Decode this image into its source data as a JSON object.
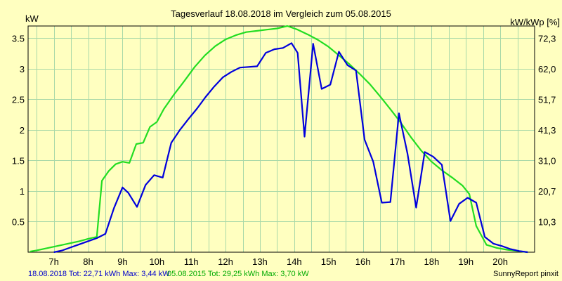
{
  "chart_data": {
    "type": "line",
    "title": "Tagesverlauf 18.08.2018 im Vergleich zum 05.08.2015",
    "ylabel_left": "kW",
    "ylabel_right": "kW/kWp [%]",
    "x_tick_labels": [
      "7h",
      "8h",
      "9h",
      "10h",
      "11h",
      "12h",
      "13h",
      "14h",
      "15h",
      "16h",
      "17h",
      "18h",
      "19h",
      "20h"
    ],
    "x_tick_values": [
      7,
      8,
      9,
      10,
      11,
      12,
      13,
      14,
      15,
      16,
      17,
      18,
      19,
      20
    ],
    "y_ticks_left": [
      {
        "value": 0.5,
        "label": "0.5"
      },
      {
        "value": 1,
        "label": "1"
      },
      {
        "value": 1.5,
        "label": "1.5"
      },
      {
        "value": 2,
        "label": "2"
      },
      {
        "value": 2.5,
        "label": "2.5"
      },
      {
        "value": 3,
        "label": "3"
      },
      {
        "value": 3.5,
        "label": "3.5"
      }
    ],
    "y_ticks_right": [
      {
        "value": 0.5,
        "label": "10,3"
      },
      {
        "value": 1,
        "label": "20,7"
      },
      {
        "value": 1.5,
        "label": "31,0"
      },
      {
        "value": 2,
        "label": "41,3"
      },
      {
        "value": 2.5,
        "label": "51,7"
      },
      {
        "value": 3,
        "label": "62,0"
      },
      {
        "value": 3.5,
        "label": "72,3"
      }
    ],
    "xlim": [
      6.25,
      21.0
    ],
    "ylim": [
      0,
      3.7
    ],
    "grid": true,
    "series": [
      {
        "name": "18.08.2018",
        "color": "#0000dd",
        "x": [
          7.0,
          7.25,
          7.5,
          7.75,
          8.0,
          8.25,
          8.5,
          8.75,
          9.0,
          9.17,
          9.42,
          9.67,
          9.92,
          10.17,
          10.42,
          10.67,
          10.92,
          11.17,
          11.42,
          11.67,
          11.92,
          12.17,
          12.42,
          12.67,
          12.92,
          13.17,
          13.42,
          13.67,
          13.92,
          14.1,
          14.3,
          14.55,
          14.8,
          15.05,
          15.3,
          15.55,
          15.8,
          16.05,
          16.3,
          16.55,
          16.8,
          17.05,
          17.3,
          17.55,
          17.8,
          18.05,
          18.3,
          18.55,
          18.8,
          19.05,
          19.3,
          19.55,
          19.8,
          20.05,
          20.3,
          20.55,
          20.8
        ],
        "values": [
          0.0,
          0.03,
          0.08,
          0.13,
          0.18,
          0.23,
          0.3,
          0.72,
          1.06,
          0.97,
          0.74,
          1.1,
          1.26,
          1.22,
          1.79,
          2.0,
          2.18,
          2.35,
          2.54,
          2.71,
          2.86,
          2.95,
          3.02,
          3.03,
          3.04,
          3.26,
          3.32,
          3.34,
          3.42,
          3.26,
          1.89,
          3.41,
          2.67,
          2.74,
          3.28,
          3.06,
          2.97,
          1.84,
          1.48,
          0.81,
          0.82,
          2.27,
          1.61,
          0.73,
          1.64,
          1.56,
          1.43,
          0.51,
          0.79,
          0.89,
          0.81,
          0.25,
          0.14,
          0.1,
          0.05,
          0.02,
          0.0
        ]
      },
      {
        "name": "05.08.2015",
        "color": "#22dd22",
        "x": [
          6.3,
          6.5,
          6.75,
          7.0,
          7.25,
          7.5,
          7.75,
          8.0,
          8.25,
          8.4,
          8.6,
          8.8,
          9.0,
          9.2,
          9.4,
          9.6,
          9.8,
          10.0,
          10.2,
          10.5,
          10.8,
          11.1,
          11.4,
          11.7,
          12.0,
          12.3,
          12.6,
          12.9,
          13.2,
          13.5,
          13.8,
          14.1,
          14.4,
          14.7,
          15.0,
          15.3,
          15.6,
          15.9,
          16.2,
          16.5,
          16.8,
          17.1,
          17.4,
          17.7,
          18.0,
          18.3,
          18.6,
          18.9,
          19.1,
          19.3,
          19.6,
          19.9,
          20.2,
          20.5,
          20.8
        ],
        "values": [
          0.01,
          0.03,
          0.06,
          0.09,
          0.12,
          0.15,
          0.18,
          0.22,
          0.25,
          1.17,
          1.33,
          1.44,
          1.48,
          1.46,
          1.77,
          1.79,
          2.05,
          2.13,
          2.34,
          2.58,
          2.8,
          3.03,
          3.22,
          3.37,
          3.48,
          3.55,
          3.6,
          3.62,
          3.64,
          3.66,
          3.7,
          3.64,
          3.56,
          3.47,
          3.36,
          3.22,
          3.08,
          2.92,
          2.75,
          2.55,
          2.34,
          2.12,
          1.88,
          1.66,
          1.48,
          1.34,
          1.22,
          1.09,
          0.95,
          0.43,
          0.12,
          0.07,
          0.04,
          0.02,
          0.0
        ]
      }
    ]
  },
  "legend": {
    "series1_text": "18.08.2018 Tot: 22,71 kWh Max: 3,44 kW",
    "series2_text": "05.08.2015 Tot: 29,25 kWh Max: 3,70 kW",
    "credit": "SunnyReport pinxit"
  }
}
